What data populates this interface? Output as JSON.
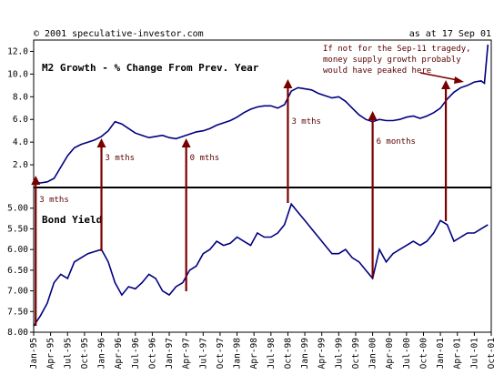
{
  "header": {
    "copyright": "© 2001 speculative-investor.com",
    "date": "as at 17 Sep 01"
  },
  "chart_data": [
    {
      "type": "line",
      "title": "M2 Growth - % Change From Prev. Year",
      "ylim": [
        0,
        13
      ],
      "yticks": [
        "2.0",
        "4.0",
        "6.0",
        "8.0",
        "10.0",
        "12.0"
      ],
      "ytick_values": [
        2,
        4,
        6,
        8,
        10,
        12
      ],
      "series": [
        {
          "color": "#000080",
          "x": [
            1995.0,
            1995.1,
            1995.2,
            1995.3,
            1995.4,
            1995.5,
            1995.6,
            1995.7,
            1995.8,
            1995.9,
            1996.0,
            1996.1,
            1996.2,
            1996.3,
            1996.4,
            1996.5,
            1996.6,
            1996.7,
            1996.8,
            1996.9,
            1997.0,
            1997.1,
            1997.2,
            1997.3,
            1997.4,
            1997.5,
            1997.6,
            1997.7,
            1997.8,
            1997.9,
            1998.0,
            1998.1,
            1998.2,
            1998.3,
            1998.4,
            1998.5,
            1998.6,
            1998.7,
            1998.8,
            1998.9,
            1999.0,
            1999.1,
            1999.2,
            1999.3,
            1999.4,
            1999.5,
            1999.6,
            1999.7,
            1999.8,
            1999.9,
            2000.0,
            2000.1,
            2000.2,
            2000.3,
            2000.4,
            2000.5,
            2000.6,
            2000.7,
            2000.8,
            2000.9,
            2001.0,
            2001.1,
            2001.2,
            2001.3,
            2001.4,
            2001.5,
            2001.6,
            2001.65,
            2001.7
          ],
          "values": [
            0.5,
            0.4,
            0.5,
            0.8,
            1.8,
            2.8,
            3.5,
            3.8,
            4.0,
            4.2,
            4.5,
            5.0,
            5.8,
            5.6,
            5.2,
            4.8,
            4.6,
            4.4,
            4.5,
            4.6,
            4.4,
            4.3,
            4.5,
            4.7,
            4.9,
            5.0,
            5.2,
            5.5,
            5.7,
            5.9,
            6.2,
            6.6,
            6.9,
            7.1,
            7.2,
            7.2,
            7.0,
            7.3,
            8.5,
            8.8,
            8.7,
            8.6,
            8.3,
            8.1,
            7.9,
            8.0,
            7.6,
            7.0,
            6.4,
            6.0,
            5.8,
            6.0,
            5.9,
            5.9,
            6.0,
            6.2,
            6.3,
            6.1,
            6.3,
            6.6,
            7.0,
            7.8,
            8.4,
            8.8,
            9.0,
            9.3,
            9.4,
            9.2,
            12.6
          ]
        }
      ],
      "annotations": [
        {
          "text": "3 mths",
          "x": 1996.0
        },
        {
          "text": "0 mths",
          "x": 1997.25
        },
        {
          "text": "3 mths",
          "x": 1998.75
        },
        {
          "text": "6 months",
          "x": 2000.0
        }
      ],
      "callout": [
        "If not for the Sep-11 tragedy,",
        "money supply growth probably",
        "would have peaked here"
      ]
    },
    {
      "type": "line",
      "title": "Bond Yield",
      "ylim": [
        8.0,
        4.5
      ],
      "yaxis_inverted": true,
      "yticks": [
        "5.00",
        "5.50",
        "6.00",
        "6.50",
        "7.00",
        "7.50",
        "8.00"
      ],
      "ytick_values": [
        5.0,
        5.5,
        6.0,
        6.5,
        7.0,
        7.5,
        8.0
      ],
      "xlabels": [
        "Jan-95",
        "Apr-95",
        "Jul-95",
        "Oct-95",
        "Jan-96",
        "Apr-96",
        "Jul-96",
        "Oct-96",
        "Jan-97",
        "Apr-97",
        "Jul-97",
        "Oct-97",
        "Jan-98",
        "Apr-98",
        "Jul-98",
        "Oct-98",
        "Jan-99",
        "Apr-99",
        "Jul-99",
        "Oct-99",
        "Jan-00",
        "Apr-00",
        "Jul-00",
        "Oct-00",
        "Jan-01",
        "Apr-01",
        "Jul-01",
        "Oct-01"
      ],
      "series": [
        {
          "color": "#000080",
          "x": [
            1995.0,
            1995.1,
            1995.2,
            1995.3,
            1995.4,
            1995.5,
            1995.6,
            1995.7,
            1995.8,
            1995.9,
            1996.0,
            1996.1,
            1996.2,
            1996.3,
            1996.4,
            1996.5,
            1996.6,
            1996.7,
            1996.8,
            1996.9,
            1997.0,
            1997.1,
            1997.2,
            1997.3,
            1997.4,
            1997.5,
            1997.6,
            1997.7,
            1997.8,
            1997.9,
            1998.0,
            1998.1,
            1998.2,
            1998.3,
            1998.4,
            1998.5,
            1998.6,
            1998.7,
            1998.8,
            1998.9,
            1999.0,
            1999.1,
            1999.2,
            1999.3,
            1999.4,
            1999.5,
            1999.6,
            1999.7,
            1999.8,
            1999.9,
            2000.0,
            2000.1,
            2000.2,
            2000.3,
            2000.4,
            2000.5,
            2000.6,
            2000.7,
            2000.8,
            2000.9,
            2001.0,
            2001.1,
            2001.2,
            2001.3,
            2001.4,
            2001.5,
            2001.6,
            2001.7
          ],
          "values": [
            7.85,
            7.6,
            7.3,
            6.8,
            6.6,
            6.7,
            6.3,
            6.2,
            6.1,
            6.05,
            6.0,
            6.3,
            6.8,
            7.1,
            6.9,
            6.95,
            6.8,
            6.6,
            6.7,
            7.0,
            7.1,
            6.9,
            6.8,
            6.5,
            6.4,
            6.1,
            6.0,
            5.8,
            5.9,
            5.85,
            5.7,
            5.8,
            5.9,
            5.6,
            5.7,
            5.7,
            5.6,
            5.4,
            4.9,
            5.1,
            5.3,
            5.5,
            5.7,
            5.9,
            6.1,
            6.1,
            6.0,
            6.2,
            6.3,
            6.5,
            6.7,
            6.0,
            6.3,
            6.1,
            6.0,
            5.9,
            5.8,
            5.9,
            5.8,
            5.6,
            5.3,
            5.4,
            5.8,
            5.7,
            5.6,
            5.6,
            5.5,
            5.4
          ]
        }
      ]
    }
  ]
}
